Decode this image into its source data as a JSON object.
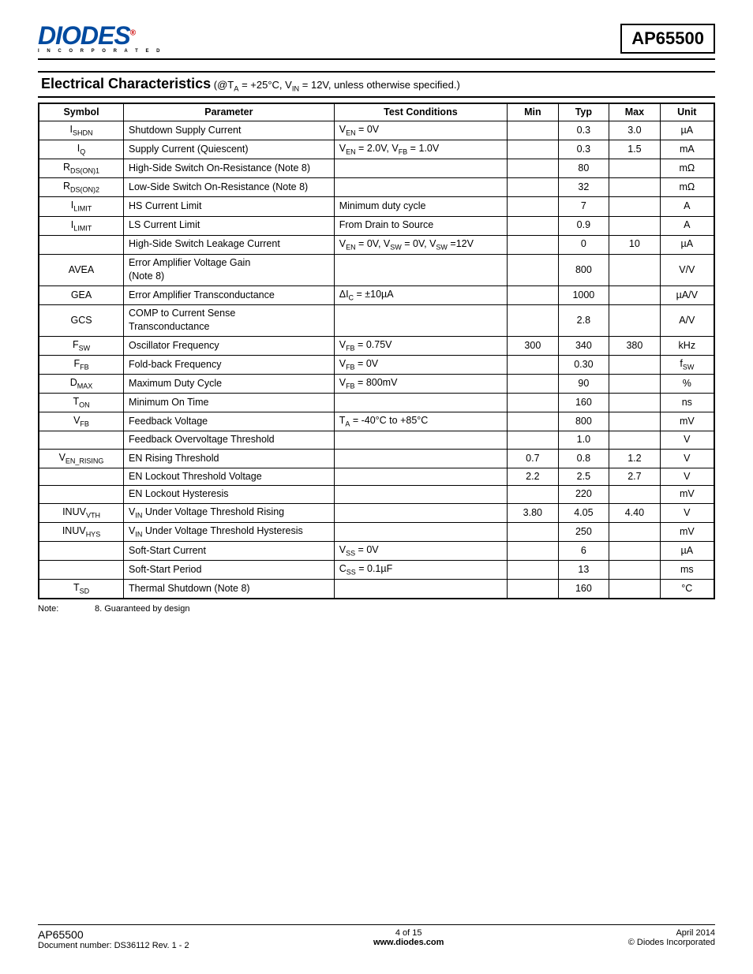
{
  "header": {
    "logo_main": "DIODES",
    "logo_sub": "I N C O R P O R A T E D",
    "part_number": "AP65500"
  },
  "section": {
    "title": "Electrical Characteristics",
    "conditions_prefix": "(@T",
    "conditions_sub1": "A",
    "conditions_mid1": " = +25°C, V",
    "conditions_sub2": "IN",
    "conditions_tail": " = 12V, unless otherwise specified.)"
  },
  "table": {
    "headers": {
      "symbol": "Symbol",
      "parameter": "Parameter",
      "test": "Test Conditions",
      "min": "Min",
      "typ": "Typ",
      "max": "Max",
      "unit": "Unit"
    },
    "rows": [
      {
        "sym": "I",
        "sub": "SHDN",
        "param": "Shutdown Supply Current",
        "test": "V<sub>EN</sub> = 0V",
        "min": "",
        "typ": "0.3",
        "max": "3.0",
        "unit": "µA"
      },
      {
        "sym": "I",
        "sub": "Q",
        "param": "Supply Current (Quiescent)",
        "test": "V<sub>EN</sub> = 2.0V, V<sub>FB</sub> = 1.0V",
        "min": "",
        "typ": "0.3",
        "max": "1.5",
        "unit": "mA"
      },
      {
        "sym": "R",
        "sub": "DS(ON)1",
        "param": "High-Side Switch On-Resistance (Note 8)",
        "test": "",
        "min": "",
        "typ": "80",
        "max": "",
        "unit": "mΩ"
      },
      {
        "sym": "R",
        "sub": "DS(ON)2",
        "param": "Low-Side Switch On-Resistance (Note 8)",
        "test": "",
        "min": "",
        "typ": "32",
        "max": "",
        "unit": "mΩ"
      },
      {
        "sym": "I",
        "sub": "LIMIT",
        "param": "HS Current Limit",
        "test": "Minimum duty cycle",
        "min": "",
        "typ": "7",
        "max": "",
        "unit": "A"
      },
      {
        "sym": "I",
        "sub": "LIMIT",
        "param": "LS Current Limit",
        "test": "From Drain to Source",
        "min": "",
        "typ": "0.9",
        "max": "",
        "unit": "A"
      },
      {
        "sym": "",
        "sub": "",
        "param": "High-Side Switch Leakage Current",
        "test": "V<sub>EN</sub> = 0V, V<sub>SW</sub> = 0V, V<sub>SW</sub> =12V",
        "min": "",
        "typ": "0",
        "max": "10",
        "unit": "µA"
      },
      {
        "sym": "AVEA",
        "sub": "",
        "param": "Error Amplifier Voltage Gain<br>(Note 8)",
        "test": "",
        "min": "",
        "typ": "800",
        "max": "",
        "unit": "V/V"
      },
      {
        "sym": "GEA",
        "sub": "",
        "param": "Error Amplifier Transconductance",
        "test": "ΔI<sub>C</sub> = ±10µA",
        "min": "",
        "typ": "1000",
        "max": "",
        "unit": "µA/V"
      },
      {
        "sym": "GCS",
        "sub": "",
        "param": "COMP to Current Sense<br>Transconductance",
        "test": "",
        "min": "",
        "typ": "2.8",
        "max": "",
        "unit": "A/V"
      },
      {
        "sym": "F",
        "sub": "SW",
        "param": "Oscillator Frequency",
        "test": "V<sub>FB</sub> = 0.75V",
        "min": "300",
        "typ": "340",
        "max": "380",
        "unit": "kHz"
      },
      {
        "sym": "F",
        "sub": "FB",
        "param": "Fold-back Frequency",
        "test": "V<sub>FB</sub> = 0V",
        "min": "",
        "typ": "0.30",
        "max": "",
        "unit": "f<sub>SW</sub>"
      },
      {
        "sym": "D",
        "sub": "MAX",
        "param": "Maximum Duty Cycle",
        "test": "V<sub>FB</sub> = 800mV",
        "min": "",
        "typ": "90",
        "max": "",
        "unit": "%"
      },
      {
        "sym": "T",
        "sub": "ON",
        "param": "Minimum On Time",
        "test": "",
        "min": "",
        "typ": "160",
        "max": "",
        "unit": "ns"
      },
      {
        "sym": "V",
        "sub": "FB",
        "param": "Feedback Voltage",
        "test": "T<sub>A</sub> = -40°C to +85°C",
        "min": "",
        "typ": "800",
        "max": "",
        "unit": "mV"
      },
      {
        "sym": "",
        "sub": "",
        "param": "Feedback Overvoltage Threshold",
        "test": "",
        "min": "",
        "typ": "1.0",
        "max": "",
        "unit": "V"
      },
      {
        "sym": "V",
        "sub": "EN_RISING",
        "param": "EN Rising Threshold",
        "test": "",
        "min": "0.7",
        "typ": "0.8",
        "max": "1.2",
        "unit": "V"
      },
      {
        "sym": "",
        "sub": "",
        "param": "EN Lockout Threshold Voltage",
        "test": "",
        "min": "2.2",
        "typ": "2.5",
        "max": "2.7",
        "unit": "V"
      },
      {
        "sym": "",
        "sub": "",
        "param": "EN Lockout Hysteresis",
        "test": "",
        "min": "",
        "typ": "220",
        "max": "",
        "unit": "mV"
      },
      {
        "sym": "INUV",
        "sub": "VTH",
        "param": "V<sub>IN</sub> Under Voltage Threshold Rising",
        "test": "",
        "min": "3.80",
        "typ": "4.05",
        "max": "4.40",
        "unit": "V"
      },
      {
        "sym": "INUV",
        "sub": "HYS",
        "param": "V<sub>IN</sub> Under Voltage Threshold Hysteresis",
        "test": "",
        "min": "",
        "typ": "250",
        "max": "",
        "unit": "mV"
      },
      {
        "sym": "",
        "sub": "",
        "param": "Soft-Start Current",
        "test": "V<sub>SS</sub> = 0V",
        "min": "",
        "typ": "6",
        "max": "",
        "unit": "µA"
      },
      {
        "sym": "",
        "sub": "",
        "param": "Soft-Start Period",
        "test": "C<sub>SS</sub> = 0.1µF",
        "min": "",
        "typ": "13",
        "max": "",
        "unit": "ms"
      },
      {
        "sym": "T",
        "sub": "SD",
        "param": "Thermal Shutdown (Note 8)",
        "test": "",
        "min": "",
        "typ": "160",
        "max": "",
        "unit": "°C"
      }
    ]
  },
  "note": {
    "label": "Note:",
    "text": "8. Guaranteed by design"
  },
  "footer": {
    "left_part": "AP65500",
    "doc": "Document number: DS36112 Rev. 1 - 2",
    "page": "4 of 15",
    "url": "www.diodes.com",
    "date": "April 2014",
    "copyright": "© Diodes Incorporated"
  }
}
